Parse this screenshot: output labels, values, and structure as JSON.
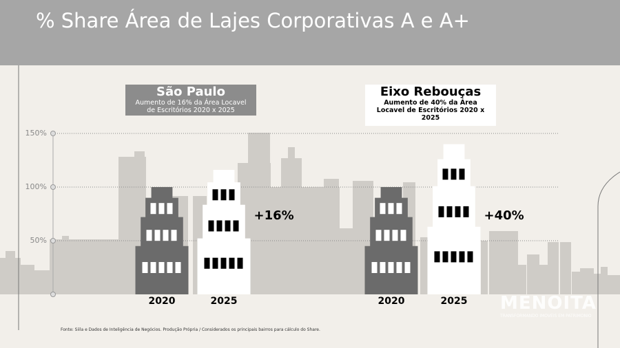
{
  "title": "% Share Área de Lajes Corporativas A e A+",
  "source": "Fonte: Siila e Dados de Inteligência de Negócios. Produção Própria / Considerados os principais bairros para cálculo do Share.",
  "brand": {
    "name": "MENOITA",
    "tagline": "TRANSFORMANDO IMÓVEIS EM PATRIMÔNIO"
  },
  "chart_data": {
    "type": "bar",
    "ylim": [
      0,
      150
    ],
    "yticks": [
      {
        "value": 50,
        "label": "50%"
      },
      {
        "value": 100,
        "label": "100%"
      },
      {
        "value": 150,
        "label": "150%"
      }
    ],
    "grid": true,
    "colors": [
      "#6b6b6b",
      "#ffffff"
    ],
    "groups": [
      {
        "title": "São Paulo",
        "subtitle": "Aumento de 16% da Área Locavel de Escritórios 2020 x 2025",
        "categories": [
          "2020",
          "2025"
        ],
        "values": [
          100,
          116
        ],
        "annotation": "+16%"
      },
      {
        "title": "Eixo Rebouças",
        "subtitle": "Aumento de 40% da Área Locavel de Escritórios 2020 x 2025",
        "categories": [
          "2020",
          "2025"
        ],
        "values": [
          100,
          140
        ],
        "annotation": "+40%"
      }
    ]
  }
}
